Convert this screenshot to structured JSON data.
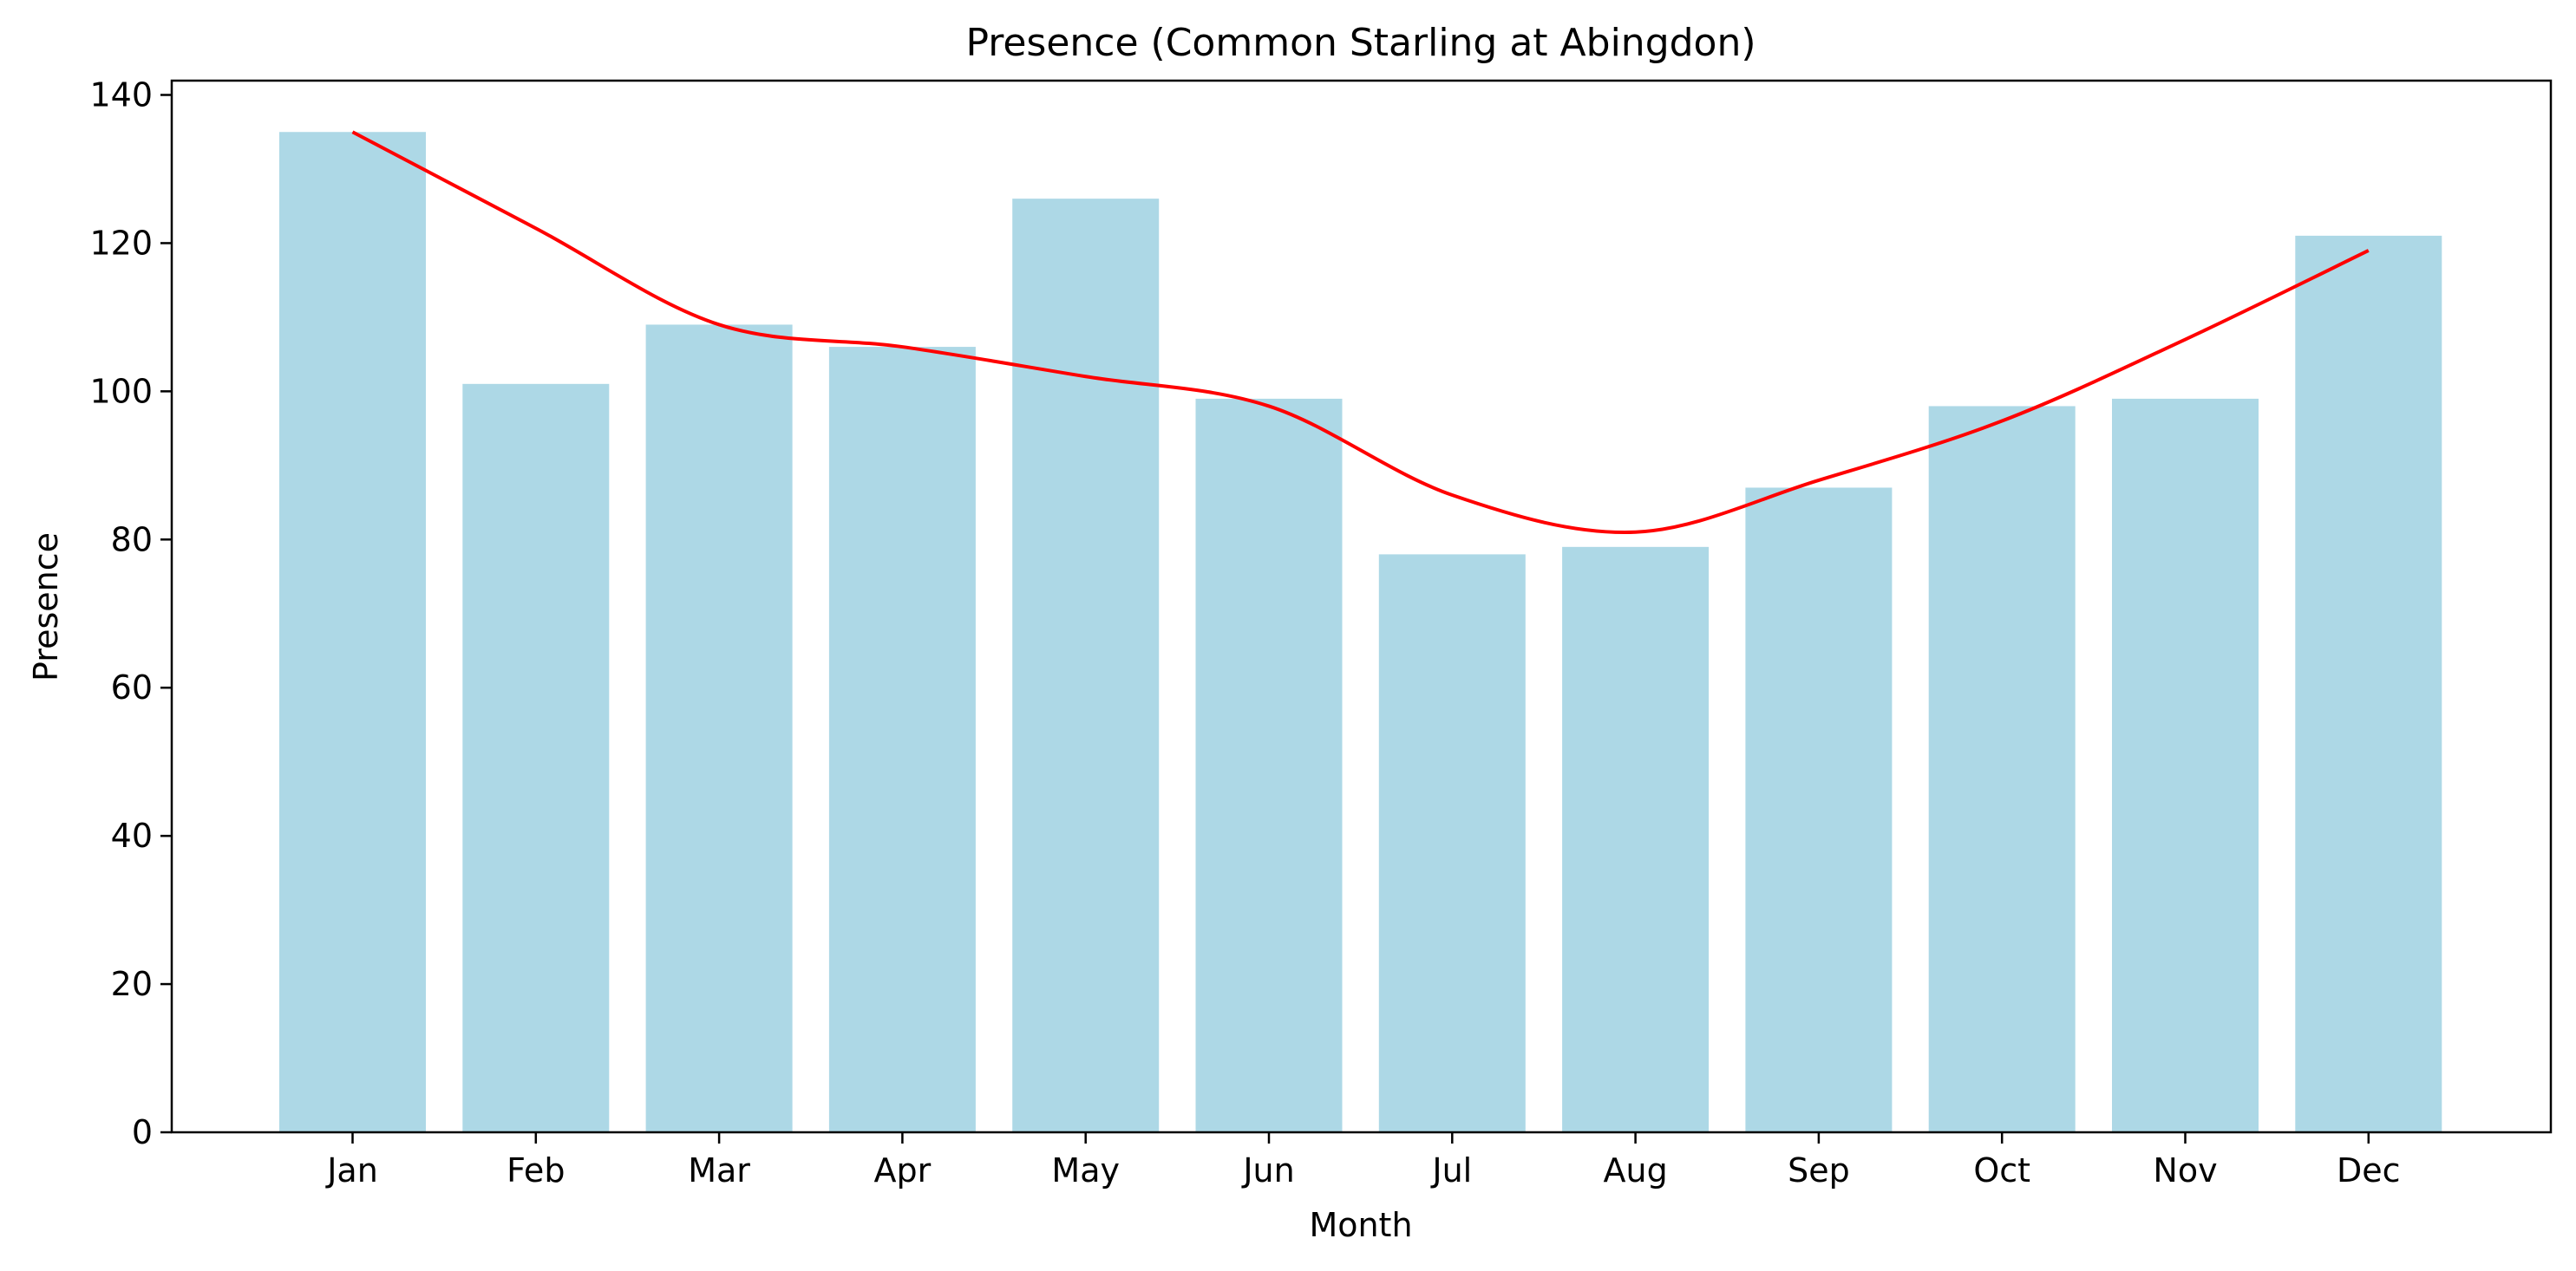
{
  "chart_data": {
    "type": "bar",
    "title": "Presence (Common Starling at Abingdon)",
    "xlabel": "Month",
    "ylabel": "Presence",
    "categories": [
      "Jan",
      "Feb",
      "Mar",
      "Apr",
      "May",
      "Jun",
      "Jul",
      "Aug",
      "Sep",
      "Oct",
      "Nov",
      "Dec"
    ],
    "series": [
      {
        "values": [
          135,
          101,
          109,
          106,
          126,
          99,
          78,
          79,
          87,
          98,
          99,
          121
        ],
        "color": "#add8e6",
        "kind": "bar"
      },
      {
        "values": [
          135,
          122,
          109,
          106,
          102,
          98,
          86,
          81,
          88,
          96,
          107,
          119
        ],
        "color": "#ff0000",
        "kind": "line"
      }
    ],
    "ylim": [
      0,
      141
    ],
    "yticks": [
      0,
      20,
      40,
      60,
      80,
      100,
      120,
      140
    ],
    "grid": false
  }
}
